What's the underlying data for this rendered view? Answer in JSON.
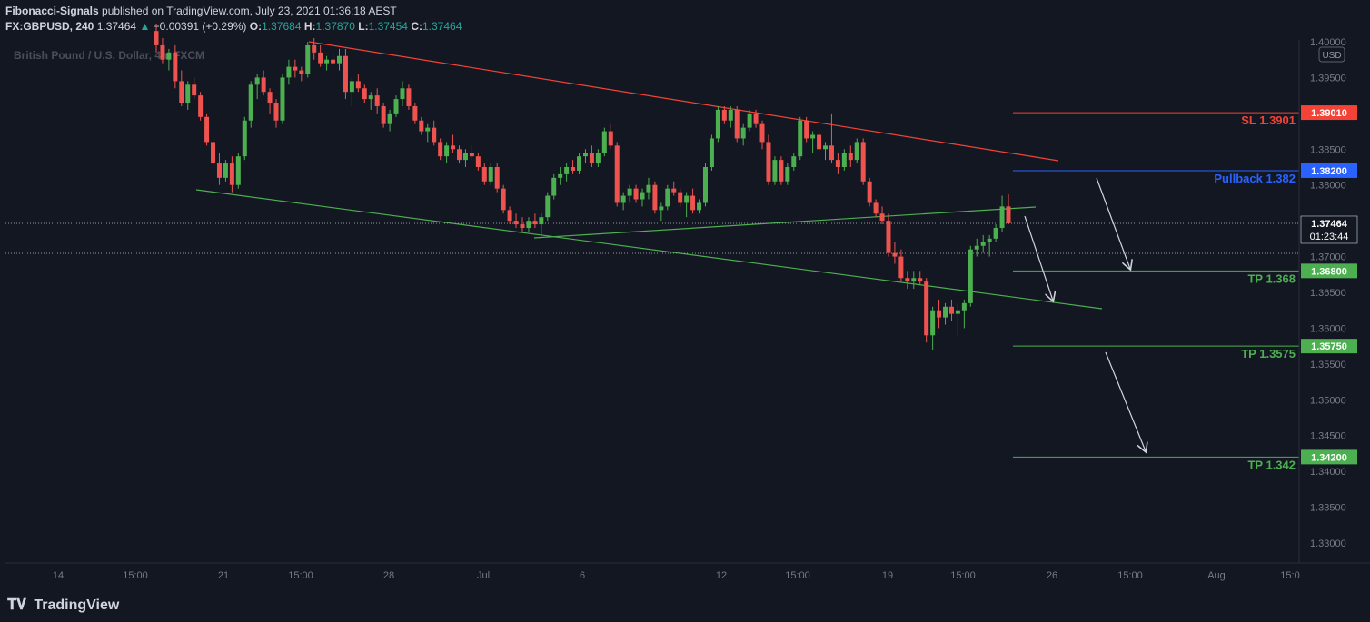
{
  "header": {
    "author": "Fibonacci-Signals",
    "published": "published on TradingView.com, July 23, 2021 01:36:18 AEST",
    "symbol": "FX:GBPUSD, 240",
    "price": "1.37464",
    "change_arrow": "▲",
    "change": "+0.00391 (+0.29%)",
    "o_label": "O:",
    "o_value": "1.37684",
    "h_label": "H:",
    "h_value": "1.37870",
    "l_label": "L:",
    "l_value": "1.37454",
    "c_label": "C:",
    "c_value": "1.37464"
  },
  "watermark": "British Pound / U.S. Dollar, 4h, FXCM",
  "footer": {
    "logo_text": "TradingView",
    "logo_mark_icon": "tradingview-logo-icon"
  },
  "colors": {
    "background": "#131722",
    "bull": "#26a69a",
    "bull_body": "#4caf50",
    "bear": "#ef5350",
    "resistance": "#f44336",
    "support": "#4caf50",
    "pullback": "#2962ff",
    "axis_text": "#787b86"
  },
  "chart_data": {
    "type": "candlestick",
    "title": "British Pound / U.S. Dollar, 4h, FXCM",
    "ylabel": "",
    "currency_badge": "USD",
    "ylim": [
      1.3275,
      1.4025
    ],
    "y_ticks": [
      "1.40000",
      "1.39500",
      "1.39000",
      "1.38500",
      "1.38000",
      "1.37500",
      "1.37000",
      "1.36500",
      "1.36000",
      "1.35500",
      "1.35000",
      "1.34500",
      "1.34000",
      "1.33500",
      "1.33000"
    ],
    "x_ticks": [
      "14",
      "15:00",
      "21",
      "15:00",
      "28",
      "Jul",
      "6",
      "12",
      "15:00",
      "19",
      "15:00",
      "26",
      "15:00",
      "Aug",
      "15:0"
    ],
    "last_price_label": "1.37464",
    "countdown_label": "01:23:44",
    "levels": [
      {
        "name": "SL",
        "text": "SL 1.3901",
        "value": 1.3901,
        "badge": "1.39010",
        "color": "#f44336"
      },
      {
        "name": "Pullback",
        "text": "Pullback 1.382",
        "value": 1.382,
        "badge": "1.38200",
        "color": "#2962ff"
      },
      {
        "name": "TP1",
        "text": "TP 1.368",
        "value": 1.368,
        "badge": "1.36800",
        "color": "#4caf50"
      },
      {
        "name": "TP2",
        "text": "TP 1.3575",
        "value": 1.3575,
        "badge": "1.35750",
        "color": "#4caf50"
      },
      {
        "name": "TP3",
        "text": "TP 1.342",
        "value": 1.342,
        "badge": "1.34200",
        "color": "#4caf50"
      }
    ],
    "candles_ohlc": [
      [
        1.4015,
        1.4025,
        1.3985,
        1.3995
      ],
      [
        1.3995,
        1.4005,
        1.397,
        1.3975
      ],
      [
        1.3975,
        1.399,
        1.396,
        1.3985
      ],
      [
        1.3985,
        1.3995,
        1.3935,
        1.3945
      ],
      [
        1.3945,
        1.396,
        1.391,
        1.3915
      ],
      [
        1.3915,
        1.3945,
        1.3905,
        1.394
      ],
      [
        1.394,
        1.395,
        1.392,
        1.3925
      ],
      [
        1.3925,
        1.393,
        1.389,
        1.3895
      ],
      [
        1.3895,
        1.39,
        1.3855,
        1.386
      ],
      [
        1.386,
        1.3865,
        1.3825,
        1.383
      ],
      [
        1.383,
        1.3845,
        1.38,
        1.381
      ],
      [
        1.381,
        1.3835,
        1.3805,
        1.383
      ],
      [
        1.383,
        1.384,
        1.379,
        1.38
      ],
      [
        1.38,
        1.3845,
        1.3795,
        1.384
      ],
      [
        1.384,
        1.3895,
        1.3835,
        1.389
      ],
      [
        1.389,
        1.3945,
        1.388,
        1.394
      ],
      [
        1.394,
        1.3955,
        1.392,
        1.395
      ],
      [
        1.395,
        1.396,
        1.3925,
        1.393
      ],
      [
        1.393,
        1.3935,
        1.39,
        1.3915
      ],
      [
        1.3915,
        1.392,
        1.388,
        1.389
      ],
      [
        1.389,
        1.3955,
        1.3885,
        1.395
      ],
      [
        1.395,
        1.3975,
        1.394,
        1.3965
      ],
      [
        1.3965,
        1.3975,
        1.395,
        1.396
      ],
      [
        1.396,
        1.3965,
        1.3945,
        1.3955
      ],
      [
        1.3955,
        1.4,
        1.395,
        1.3995
      ],
      [
        1.3995,
        1.4005,
        1.3975,
        1.3985
      ],
      [
        1.3985,
        1.3995,
        1.3965,
        1.397
      ],
      [
        1.397,
        1.398,
        1.396,
        1.3975
      ],
      [
        1.3975,
        1.3985,
        1.3965,
        1.397
      ],
      [
        1.397,
        1.399,
        1.396,
        1.398
      ],
      [
        1.398,
        1.399,
        1.392,
        1.393
      ],
      [
        1.393,
        1.395,
        1.391,
        1.3945
      ],
      [
        1.3945,
        1.3955,
        1.393,
        1.3935
      ],
      [
        1.3935,
        1.394,
        1.3915,
        1.392
      ],
      [
        1.392,
        1.393,
        1.3905,
        1.3925
      ],
      [
        1.3925,
        1.3935,
        1.39,
        1.391
      ],
      [
        1.391,
        1.3915,
        1.388,
        1.3885
      ],
      [
        1.3885,
        1.3905,
        1.3875,
        1.39
      ],
      [
        1.39,
        1.3925,
        1.3895,
        1.392
      ],
      [
        1.392,
        1.3945,
        1.391,
        1.3935
      ],
      [
        1.3935,
        1.394,
        1.3905,
        1.391
      ],
      [
        1.391,
        1.3915,
        1.3885,
        1.389
      ],
      [
        1.389,
        1.3895,
        1.387,
        1.3875
      ],
      [
        1.3875,
        1.3885,
        1.386,
        1.388
      ],
      [
        1.388,
        1.389,
        1.3855,
        1.386
      ],
      [
        1.386,
        1.3865,
        1.3835,
        1.384
      ],
      [
        1.384,
        1.386,
        1.383,
        1.3855
      ],
      [
        1.3855,
        1.387,
        1.3845,
        1.385
      ],
      [
        1.385,
        1.3855,
        1.383,
        1.3835
      ],
      [
        1.3835,
        1.385,
        1.3825,
        1.3845
      ],
      [
        1.3845,
        1.3855,
        1.3835,
        1.384
      ],
      [
        1.384,
        1.3845,
        1.382,
        1.3825
      ],
      [
        1.3825,
        1.383,
        1.38,
        1.3805
      ],
      [
        1.3805,
        1.383,
        1.38,
        1.3825
      ],
      [
        1.3825,
        1.383,
        1.379,
        1.3795
      ],
      [
        1.3795,
        1.38,
        1.376,
        1.3765
      ],
      [
        1.3765,
        1.377,
        1.3745,
        1.375
      ],
      [
        1.375,
        1.376,
        1.374,
        1.3745
      ],
      [
        1.3745,
        1.3755,
        1.3735,
        1.374
      ],
      [
        1.374,
        1.3755,
        1.3735,
        1.375
      ],
      [
        1.375,
        1.376,
        1.374,
        1.3745
      ],
      [
        1.3745,
        1.376,
        1.373,
        1.3755
      ],
      [
        1.3755,
        1.379,
        1.375,
        1.3785
      ],
      [
        1.3785,
        1.3815,
        1.378,
        1.381
      ],
      [
        1.381,
        1.3825,
        1.38,
        1.3815
      ],
      [
        1.3815,
        1.383,
        1.3805,
        1.3825
      ],
      [
        1.3825,
        1.3835,
        1.3815,
        1.382
      ],
      [
        1.382,
        1.3845,
        1.3815,
        1.384
      ],
      [
        1.384,
        1.385,
        1.383,
        1.3845
      ],
      [
        1.3845,
        1.3855,
        1.3825,
        1.383
      ],
      [
        1.383,
        1.385,
        1.3825,
        1.3845
      ],
      [
        1.3845,
        1.388,
        1.384,
        1.3875
      ],
      [
        1.3875,
        1.3885,
        1.385,
        1.3855
      ],
      [
        1.3855,
        1.386,
        1.377,
        1.3775
      ],
      [
        1.3775,
        1.379,
        1.3765,
        1.3785
      ],
      [
        1.3785,
        1.38,
        1.3775,
        1.3795
      ],
      [
        1.3795,
        1.38,
        1.3775,
        1.378
      ],
      [
        1.378,
        1.3795,
        1.377,
        1.379
      ],
      [
        1.379,
        1.381,
        1.378,
        1.38
      ],
      [
        1.38,
        1.3805,
        1.376,
        1.3765
      ],
      [
        1.3765,
        1.3775,
        1.375,
        1.377
      ],
      [
        1.377,
        1.38,
        1.3765,
        1.3795
      ],
      [
        1.3795,
        1.3805,
        1.3785,
        1.379
      ],
      [
        1.379,
        1.3795,
        1.377,
        1.3775
      ],
      [
        1.3775,
        1.379,
        1.3755,
        1.3785
      ],
      [
        1.3785,
        1.3795,
        1.376,
        1.3765
      ],
      [
        1.3765,
        1.378,
        1.376,
        1.3775
      ],
      [
        1.3775,
        1.383,
        1.377,
        1.3825
      ],
      [
        1.3825,
        1.387,
        1.382,
        1.3865
      ],
      [
        1.3865,
        1.391,
        1.386,
        1.3905
      ],
      [
        1.3905,
        1.391,
        1.3885,
        1.389
      ],
      [
        1.389,
        1.391,
        1.388,
        1.3905
      ],
      [
        1.3905,
        1.391,
        1.386,
        1.3865
      ],
      [
        1.3865,
        1.3885,
        1.3855,
        1.388
      ],
      [
        1.388,
        1.3905,
        1.3875,
        1.39
      ],
      [
        1.39,
        1.3905,
        1.388,
        1.3885
      ],
      [
        1.3885,
        1.389,
        1.385,
        1.386
      ],
      [
        1.386,
        1.387,
        1.38,
        1.3805
      ],
      [
        1.3805,
        1.384,
        1.38,
        1.3835
      ],
      [
        1.3835,
        1.384,
        1.38,
        1.3805
      ],
      [
        1.3805,
        1.383,
        1.38,
        1.3825
      ],
      [
        1.3825,
        1.3845,
        1.382,
        1.384
      ],
      [
        1.384,
        1.3895,
        1.3835,
        1.389
      ],
      [
        1.389,
        1.3895,
        1.386,
        1.3865
      ],
      [
        1.3865,
        1.3875,
        1.3845,
        1.387
      ],
      [
        1.387,
        1.3875,
        1.3845,
        1.385
      ],
      [
        1.385,
        1.386,
        1.3835,
        1.3855
      ],
      [
        1.3855,
        1.39,
        1.383,
        1.3835
      ],
      [
        1.3835,
        1.3845,
        1.3815,
        1.3825
      ],
      [
        1.3825,
        1.385,
        1.382,
        1.3845
      ],
      [
        1.3845,
        1.3855,
        1.3825,
        1.3835
      ],
      [
        1.3835,
        1.3865,
        1.383,
        1.386
      ],
      [
        1.386,
        1.3865,
        1.38,
        1.3805
      ],
      [
        1.3805,
        1.381,
        1.377,
        1.3775
      ],
      [
        1.3775,
        1.378,
        1.3755,
        1.376
      ],
      [
        1.376,
        1.377,
        1.3745,
        1.375
      ],
      [
        1.375,
        1.376,
        1.37,
        1.3705
      ],
      [
        1.3705,
        1.372,
        1.369,
        1.37
      ],
      [
        1.37,
        1.371,
        1.3665,
        1.367
      ],
      [
        1.367,
        1.368,
        1.3655,
        1.3665
      ],
      [
        1.3665,
        1.368,
        1.3655,
        1.367
      ],
      [
        1.367,
        1.368,
        1.366,
        1.3665
      ],
      [
        1.3665,
        1.367,
        1.358,
        1.359
      ],
      [
        1.359,
        1.363,
        1.357,
        1.3625
      ],
      [
        1.3625,
        1.364,
        1.36,
        1.3615
      ],
      [
        1.3615,
        1.3635,
        1.3605,
        1.363
      ],
      [
        1.363,
        1.364,
        1.361,
        1.362
      ],
      [
        1.362,
        1.3635,
        1.359,
        1.3625
      ],
      [
        1.3625,
        1.364,
        1.36,
        1.3635
      ],
      [
        1.3635,
        1.3715,
        1.363,
        1.371
      ],
      [
        1.371,
        1.3725,
        1.37,
        1.3715
      ],
      [
        1.3715,
        1.373,
        1.3705,
        1.372
      ],
      [
        1.372,
        1.373,
        1.37,
        1.3725
      ],
      [
        1.3725,
        1.3745,
        1.372,
        1.374
      ],
      [
        1.374,
        1.3785,
        1.3735,
        1.377
      ],
      [
        1.377,
        1.3787,
        1.3745,
        1.37464
      ]
    ],
    "annotation_arrows": [
      {
        "from": "Pullback 1.382",
        "to": "TP 1.368"
      },
      {
        "from": "1.3770",
        "to": "1.3640"
      },
      {
        "from": "TP 1.3575",
        "to": "TP 1.342"
      }
    ],
    "trendlines": [
      {
        "name": "upper-channel-resistance",
        "color": "#f44336"
      },
      {
        "name": "lower-channel-support",
        "color": "#4caf50"
      },
      {
        "name": "inner-rising-line",
        "color": "#4caf50"
      }
    ],
    "grid": false,
    "legend": "none"
  }
}
